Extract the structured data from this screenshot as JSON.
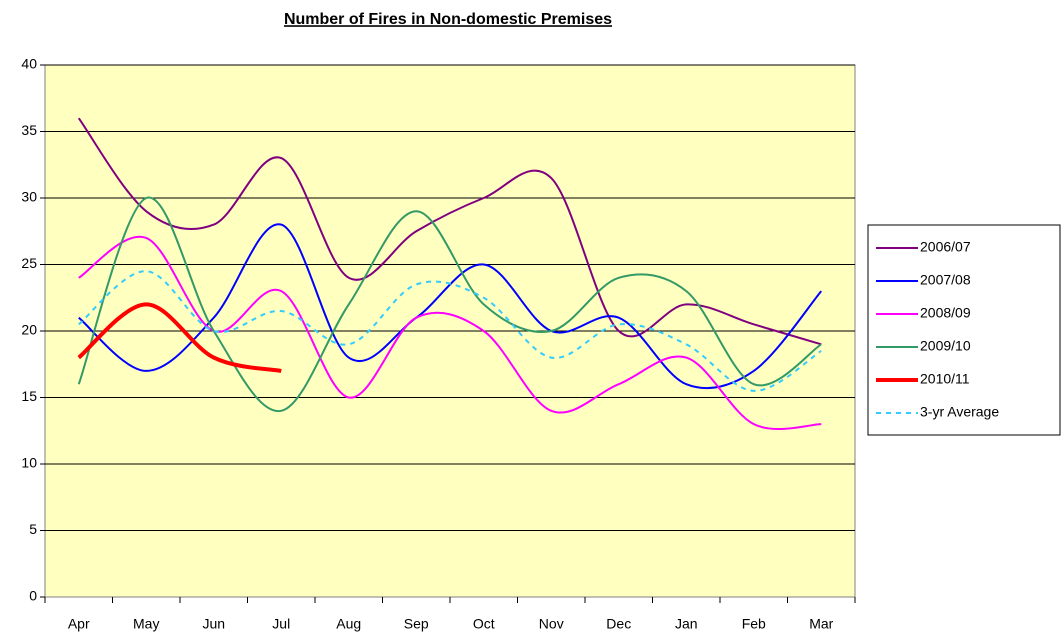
{
  "chart_data": {
    "type": "line",
    "title": "Number of Fires in Non-domestic Premises",
    "categories": [
      "Apr",
      "May",
      "Jun",
      "Jul",
      "Aug",
      "Sep",
      "Oct",
      "Nov",
      "Dec",
      "Jan",
      "Feb",
      "Mar"
    ],
    "ylim": [
      0,
      40
    ],
    "yticks": [
      0,
      5,
      10,
      15,
      20,
      25,
      30,
      35,
      40
    ],
    "grid": true,
    "legend": "right",
    "series": [
      {
        "name": "2006/07",
        "color": "#800080",
        "width": 2,
        "dash": false,
        "values": [
          36,
          29,
          28,
          33,
          24,
          27.5,
          30,
          31.5,
          20,
          22,
          20.5,
          19
        ]
      },
      {
        "name": "2007/08",
        "color": "#0000ff",
        "width": 2,
        "dash": false,
        "values": [
          21,
          17,
          21,
          28,
          18,
          21,
          25,
          20,
          21,
          16,
          17,
          23
        ]
      },
      {
        "name": "2008/09",
        "color": "#ff00ff",
        "width": 2,
        "dash": false,
        "values": [
          24,
          27,
          20,
          23,
          15,
          21,
          20,
          14,
          16,
          18,
          13,
          13
        ]
      },
      {
        "name": "2009/10",
        "color": "#339966",
        "width": 2,
        "dash": false,
        "values": [
          16,
          30,
          20,
          14,
          22,
          29,
          22,
          20,
          24,
          23,
          16,
          19
        ]
      },
      {
        "name": "2010/11",
        "color": "#ff0000",
        "width": 4,
        "dash": false,
        "values": [
          18,
          22,
          18,
          17,
          null,
          null,
          null,
          null,
          null,
          null,
          null,
          null
        ]
      },
      {
        "name": "3-yr Average",
        "color": "#33ccff",
        "width": 2,
        "dash": true,
        "values": [
          20.5,
          24.5,
          20,
          21.5,
          19,
          23.5,
          22.5,
          18,
          20.5,
          19,
          15.5,
          18.5
        ]
      }
    ]
  }
}
